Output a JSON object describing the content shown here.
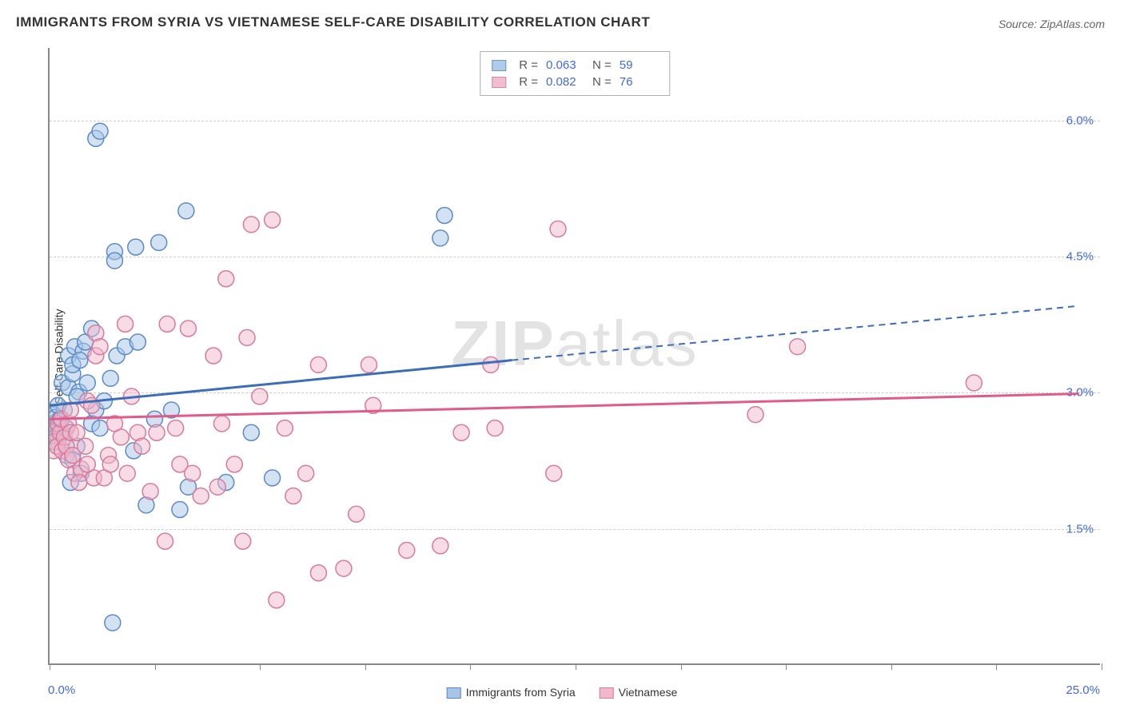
{
  "title": "IMMIGRANTS FROM SYRIA VS VIETNAMESE SELF-CARE DISABILITY CORRELATION CHART",
  "source": "Source: ZipAtlas.com",
  "ylabel": "Self-Care Disability",
  "watermark_a": "ZIP",
  "watermark_b": "atlas",
  "xaxis": {
    "min_label": "0.0%",
    "max_label": "25.0%",
    "min": 0.0,
    "max": 25.0
  },
  "yaxis": {
    "min": 0.0,
    "max": 6.8,
    "ticks": [
      {
        "value": 1.5,
        "label": "1.5%"
      },
      {
        "value": 3.0,
        "label": "3.0%"
      },
      {
        "value": 4.5,
        "label": "4.5%"
      },
      {
        "value": 6.0,
        "label": "6.0%"
      }
    ]
  },
  "xticks": [
    0,
    2.5,
    5.0,
    7.5,
    10.0,
    12.5,
    15.0,
    17.5,
    20.0,
    22.5,
    25.0
  ],
  "series": [
    {
      "name": "Immigrants from Syria",
      "stroke": "#5b8ac6",
      "fill": "#a8c5e8",
      "fill_opacity": 0.5,
      "line_color": "#3b6db8",
      "R": "0.063",
      "N": "59",
      "trend": {
        "x0": 0.0,
        "y0": 2.85,
        "x1_solid": 11.0,
        "y1_solid": 3.35,
        "x1_dash": 24.5,
        "y1_dash": 3.95
      },
      "points": [
        [
          0.05,
          2.6
        ],
        [
          0.1,
          2.75
        ],
        [
          0.12,
          2.55
        ],
        [
          0.1,
          2.65
        ],
        [
          0.18,
          2.6
        ],
        [
          0.15,
          2.5
        ],
        [
          0.15,
          2.72
        ],
        [
          0.22,
          2.62
        ],
        [
          0.2,
          2.45
        ],
        [
          0.3,
          2.55
        ],
        [
          0.25,
          2.7
        ],
        [
          0.35,
          2.8
        ],
        [
          0.4,
          2.6
        ],
        [
          0.3,
          3.1
        ],
        [
          0.45,
          3.05
        ],
        [
          0.55,
          3.2
        ],
        [
          0.45,
          3.4
        ],
        [
          0.6,
          3.5
        ],
        [
          0.55,
          3.3
        ],
        [
          0.7,
          3.0
        ],
        [
          0.8,
          3.45
        ],
        [
          0.9,
          3.1
        ],
        [
          0.72,
          3.35
        ],
        [
          0.85,
          3.55
        ],
        [
          0.4,
          2.3
        ],
        [
          0.65,
          2.4
        ],
        [
          0.55,
          2.25
        ],
        [
          0.75,
          2.1
        ],
        [
          0.5,
          2.0
        ],
        [
          1.0,
          2.65
        ],
        [
          1.1,
          2.8
        ],
        [
          1.2,
          2.6
        ],
        [
          1.3,
          2.9
        ],
        [
          1.45,
          3.15
        ],
        [
          1.55,
          4.55
        ],
        [
          1.55,
          4.45
        ],
        [
          2.05,
          4.6
        ],
        [
          2.6,
          4.65
        ],
        [
          3.25,
          5.0
        ],
        [
          1.1,
          5.8
        ],
        [
          1.2,
          5.88
        ],
        [
          1.6,
          3.4
        ],
        [
          1.8,
          3.5
        ],
        [
          2.1,
          3.55
        ],
        [
          2.5,
          2.7
        ],
        [
          2.9,
          2.8
        ],
        [
          3.1,
          1.7
        ],
        [
          3.3,
          1.95
        ],
        [
          4.2,
          2.0
        ],
        [
          4.8,
          2.55
        ],
        [
          5.3,
          2.05
        ],
        [
          2.0,
          2.35
        ],
        [
          2.3,
          1.75
        ],
        [
          1.5,
          0.45
        ],
        [
          9.4,
          4.95
        ],
        [
          9.3,
          4.7
        ],
        [
          1.0,
          3.7
        ],
        [
          0.65,
          2.95
        ],
        [
          0.2,
          2.85
        ]
      ]
    },
    {
      "name": "Vietnamese",
      "stroke": "#d87a9a",
      "fill": "#f0b8cc",
      "fill_opacity": 0.5,
      "line_color": "#e05a8a",
      "R": "0.082",
      "N": "76",
      "trend": {
        "x0": 0.0,
        "y0": 2.7,
        "x1_solid": 24.5,
        "y1_solid": 2.98,
        "x1_dash": 24.5,
        "y1_dash": 2.98
      },
      "points": [
        [
          0.05,
          2.55
        ],
        [
          0.1,
          2.35
        ],
        [
          0.12,
          2.45
        ],
        [
          0.18,
          2.4
        ],
        [
          0.2,
          2.65
        ],
        [
          0.25,
          2.55
        ],
        [
          0.3,
          2.35
        ],
        [
          0.28,
          2.7
        ],
        [
          0.35,
          2.5
        ],
        [
          0.4,
          2.4
        ],
        [
          0.45,
          2.65
        ],
        [
          0.5,
          2.55
        ],
        [
          0.45,
          2.25
        ],
        [
          0.55,
          2.3
        ],
        [
          0.65,
          2.55
        ],
        [
          0.6,
          2.1
        ],
        [
          0.75,
          2.15
        ],
        [
          0.7,
          2.0
        ],
        [
          0.85,
          2.4
        ],
        [
          0.9,
          2.9
        ],
        [
          1.05,
          2.05
        ],
        [
          1.0,
          2.85
        ],
        [
          1.1,
          3.4
        ],
        [
          1.1,
          3.65
        ],
        [
          1.2,
          3.5
        ],
        [
          1.3,
          2.05
        ],
        [
          1.4,
          2.3
        ],
        [
          1.55,
          2.65
        ],
        [
          1.45,
          2.2
        ],
        [
          1.7,
          2.5
        ],
        [
          1.85,
          2.1
        ],
        [
          1.95,
          2.95
        ],
        [
          2.1,
          2.55
        ],
        [
          2.2,
          2.4
        ],
        [
          2.4,
          1.9
        ],
        [
          2.55,
          2.55
        ],
        [
          2.75,
          1.35
        ],
        [
          2.8,
          3.75
        ],
        [
          3.0,
          2.6
        ],
        [
          3.1,
          2.2
        ],
        [
          3.3,
          3.7
        ],
        [
          3.4,
          2.1
        ],
        [
          3.6,
          1.85
        ],
        [
          3.9,
          3.4
        ],
        [
          4.1,
          2.65
        ],
        [
          4.0,
          1.95
        ],
        [
          4.2,
          4.25
        ],
        [
          4.4,
          2.2
        ],
        [
          4.6,
          1.35
        ],
        [
          4.8,
          4.85
        ],
        [
          4.7,
          3.6
        ],
        [
          5.0,
          2.95
        ],
        [
          5.3,
          4.9
        ],
        [
          5.4,
          0.7
        ],
        [
          5.6,
          2.6
        ],
        [
          5.8,
          1.85
        ],
        [
          6.1,
          2.1
        ],
        [
          6.4,
          1.0
        ],
        [
          6.4,
          3.3
        ],
        [
          7.0,
          1.05
        ],
        [
          7.3,
          1.65
        ],
        [
          7.6,
          3.3
        ],
        [
          7.7,
          2.85
        ],
        [
          8.5,
          1.25
        ],
        [
          9.3,
          1.3
        ],
        [
          9.8,
          2.55
        ],
        [
          10.5,
          3.3
        ],
        [
          10.6,
          2.6
        ],
        [
          12.0,
          2.1
        ],
        [
          12.1,
          4.8
        ],
        [
          16.8,
          2.75
        ],
        [
          17.8,
          3.5
        ],
        [
          22.0,
          3.1
        ],
        [
          1.8,
          3.75
        ],
        [
          0.9,
          2.2
        ],
        [
          0.5,
          2.8
        ]
      ]
    }
  ],
  "top_legend": {
    "R_label": "R =",
    "N_label": "N ="
  },
  "marker_radius": 10,
  "trend_line_width": 3
}
